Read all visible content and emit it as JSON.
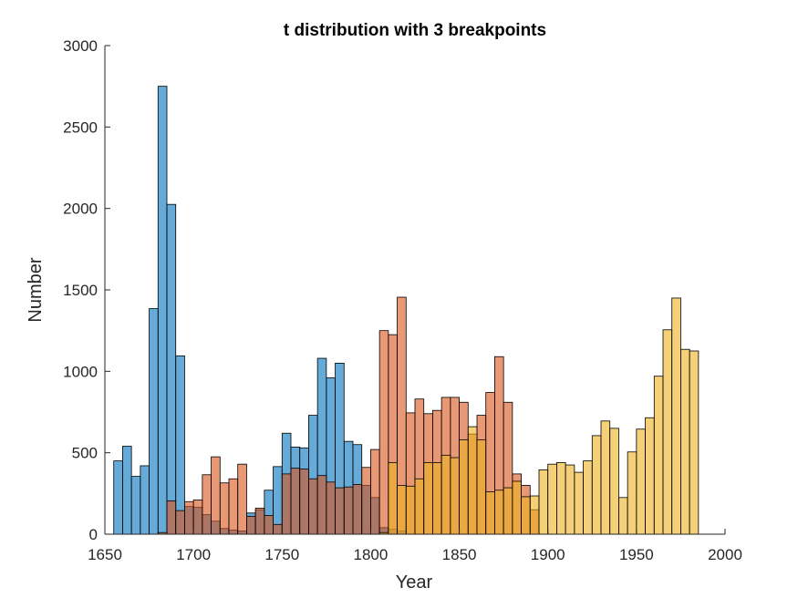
{
  "chart_data": {
    "type": "bar",
    "title": "t distribution with 3 breakpoints",
    "xlabel": "Year",
    "ylabel": "Number",
    "xlim": [
      1650,
      2000
    ],
    "ylim": [
      0,
      3000
    ],
    "xticks": [
      1650,
      1700,
      1750,
      1800,
      1850,
      1900,
      1950,
      2000
    ],
    "yticks": [
      0,
      500,
      1000,
      1500,
      2000,
      2500,
      3000
    ],
    "bin_width": 5,
    "grid": false,
    "legend": "none",
    "series": [
      {
        "color": "#0072BD",
        "bins": [
          [
            1655,
            450
          ],
          [
            1660,
            540
          ],
          [
            1665,
            355
          ],
          [
            1670,
            420
          ],
          [
            1675,
            1385
          ],
          [
            1680,
            2750
          ],
          [
            1685,
            2025
          ],
          [
            1690,
            1095
          ],
          [
            1695,
            170
          ],
          [
            1700,
            165
          ],
          [
            1705,
            120
          ],
          [
            1710,
            80
          ],
          [
            1715,
            35
          ],
          [
            1720,
            25
          ],
          [
            1725,
            20
          ],
          [
            1730,
            130
          ],
          [
            1735,
            150
          ],
          [
            1740,
            270
          ],
          [
            1745,
            415
          ],
          [
            1750,
            620
          ],
          [
            1755,
            535
          ],
          [
            1760,
            530
          ],
          [
            1765,
            730
          ],
          [
            1770,
            1080
          ],
          [
            1775,
            960
          ],
          [
            1780,
            1050
          ],
          [
            1785,
            570
          ],
          [
            1790,
            550
          ],
          [
            1795,
            300
          ],
          [
            1800,
            225
          ],
          [
            1805,
            40
          ],
          [
            1810,
            30
          ],
          [
            1815,
            20
          ]
        ]
      },
      {
        "color": "#D95319",
        "bins": [
          [
            1680,
            10
          ],
          [
            1685,
            205
          ],
          [
            1690,
            145
          ],
          [
            1695,
            200
          ],
          [
            1700,
            210
          ],
          [
            1705,
            365
          ],
          [
            1710,
            475
          ],
          [
            1715,
            315
          ],
          [
            1720,
            340
          ],
          [
            1725,
            430
          ],
          [
            1730,
            110
          ],
          [
            1735,
            160
          ],
          [
            1740,
            115
          ],
          [
            1745,
            60
          ],
          [
            1750,
            370
          ],
          [
            1755,
            405
          ],
          [
            1760,
            400
          ],
          [
            1765,
            340
          ],
          [
            1770,
            360
          ],
          [
            1775,
            320
          ],
          [
            1780,
            285
          ],
          [
            1785,
            290
          ],
          [
            1790,
            305
          ],
          [
            1795,
            410
          ],
          [
            1800,
            520
          ],
          [
            1805,
            1250
          ],
          [
            1810,
            1225
          ],
          [
            1815,
            1455
          ],
          [
            1820,
            745
          ],
          [
            1825,
            830
          ],
          [
            1830,
            740
          ],
          [
            1835,
            760
          ],
          [
            1840,
            840
          ],
          [
            1845,
            840
          ],
          [
            1850,
            810
          ],
          [
            1855,
            615
          ],
          [
            1860,
            730
          ],
          [
            1865,
            870
          ],
          [
            1870,
            1090
          ],
          [
            1875,
            810
          ],
          [
            1880,
            370
          ],
          [
            1885,
            300
          ],
          [
            1890,
            150
          ]
        ]
      },
      {
        "color": "#EDB120",
        "bins": [
          [
            1805,
            10
          ],
          [
            1810,
            440
          ],
          [
            1815,
            300
          ],
          [
            1820,
            295
          ],
          [
            1825,
            340
          ],
          [
            1830,
            440
          ],
          [
            1835,
            440
          ],
          [
            1840,
            485
          ],
          [
            1845,
            470
          ],
          [
            1850,
            580
          ],
          [
            1855,
            660
          ],
          [
            1860,
            580
          ],
          [
            1865,
            260
          ],
          [
            1870,
            270
          ],
          [
            1875,
            285
          ],
          [
            1880,
            325
          ],
          [
            1885,
            230
          ],
          [
            1890,
            235
          ],
          [
            1895,
            395
          ],
          [
            1900,
            430
          ],
          [
            1905,
            440
          ],
          [
            1910,
            425
          ],
          [
            1915,
            380
          ],
          [
            1920,
            450
          ],
          [
            1925,
            605
          ],
          [
            1930,
            695
          ],
          [
            1935,
            650
          ],
          [
            1940,
            225
          ],
          [
            1945,
            505
          ],
          [
            1950,
            645
          ],
          [
            1955,
            715
          ],
          [
            1960,
            970
          ],
          [
            1965,
            1255
          ],
          [
            1970,
            1450
          ],
          [
            1975,
            1135
          ],
          [
            1980,
            1125
          ]
        ]
      }
    ]
  }
}
